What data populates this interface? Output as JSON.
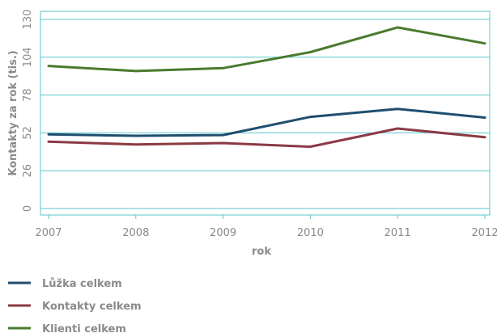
{
  "chart_data": {
    "type": "line",
    "title": "",
    "xlabel": "rok",
    "ylabel": "Kontakty za rok (tis.)",
    "x": [
      "2007",
      "2008",
      "2009",
      "2010",
      "2011",
      "2012"
    ],
    "ylim": [
      0,
      130
    ],
    "yticks": [
      0,
      26,
      52,
      78,
      104,
      130
    ],
    "grid": true,
    "legend_position": "bottom-left",
    "colors": {
      "grid": "#5bc6cc",
      "axis": "#5bc6cc",
      "text": "#8a8a8a"
    },
    "series": [
      {
        "name": "Lůžka celkem",
        "color": "#1f4e6e",
        "values": [
          51,
          50,
          50.5,
          63,
          68.5,
          62.5
        ]
      },
      {
        "name": "Kontakty celkem",
        "color": "#8b3a44",
        "values": [
          46,
          44,
          45,
          42.5,
          55,
          49
        ]
      },
      {
        "name": "Klienti celkem",
        "color": "#4a7a2e",
        "values": [
          98,
          94.5,
          96.5,
          107.5,
          124.5,
          113.5
        ]
      }
    ]
  }
}
